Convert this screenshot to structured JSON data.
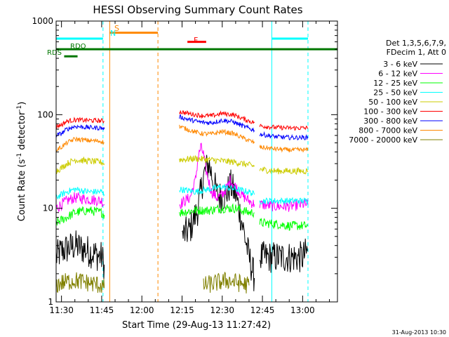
{
  "chart_data": {
    "type": "line",
    "title": "HESSI Observing Summary Count Rates",
    "xlabel": "Start Time (29-Aug-13 11:27:42)",
    "ylabel_main": "Count Rate (s",
    "ylabel_sup1": "-1",
    "ylabel_mid": " detector",
    "ylabel_sup2": "-1",
    "ylabel_end": ")",
    "y_scale": "log",
    "ylim": [
      1,
      1000
    ],
    "xlim_minutes": [
      688,
      793
    ],
    "x_ticks": [
      {
        "m": 690,
        "label": "11:30"
      },
      {
        "m": 705,
        "label": "11:45"
      },
      {
        "m": 720,
        "label": "12:00"
      },
      {
        "m": 735,
        "label": "12:15"
      },
      {
        "m": 750,
        "label": "12:30"
      },
      {
        "m": 765,
        "label": "12:45"
      },
      {
        "m": 780,
        "label": "13:00"
      }
    ],
    "y_ticks": [
      {
        "v": 1,
        "label": "1"
      },
      {
        "v": 10,
        "label": "10"
      },
      {
        "v": 100,
        "label": "100"
      },
      {
        "v": 1000,
        "label": "1000"
      }
    ],
    "legend": {
      "header": [
        "Det 1,3,5,6,7,9,",
        "FDecim 1, Att 0"
      ],
      "placement": "right"
    },
    "series": [
      {
        "name": "3 - 6 keV",
        "color": "#000000",
        "segments": [
          {
            "x": [
              688,
              690,
              695,
              700,
              705,
              706
            ],
            "y": [
              3.0,
              3.5,
              4.0,
              3.5,
              3.0,
              2.5
            ]
          },
          {
            "x": [
              735,
              738,
              741,
              743,
              745,
              748,
              750,
              752,
              753,
              755,
              757,
              760,
              762
            ],
            "y": [
              5.0,
              6.0,
              10.0,
              22.0,
              30.0,
              14.0,
              13.0,
              15.0,
              18.0,
              14.0,
              8.0,
              3.0,
              1.8
            ]
          },
          {
            "x": [
              764,
              770,
              775,
              780,
              782
            ],
            "y": [
              3.0,
              3.0,
              3.0,
              3.0,
              3.5
            ]
          }
        ]
      },
      {
        "name": "6 - 12 keV",
        "color": "#ff00ff",
        "segments": [
          {
            "x": [
              688,
              690,
              692,
              695,
              700,
              705,
              706
            ],
            "y": [
              10.0,
              11.0,
              12.0,
              13.0,
              12.5,
              12.0,
              11.0
            ]
          },
          {
            "x": [
              734,
              738,
              740,
              741,
              742,
              743,
              744,
              746,
              748,
              750,
              752,
              753,
              755,
              757,
              760,
              762
            ],
            "y": [
              11.0,
              13.0,
              20.0,
              35.0,
              45.0,
              38.0,
              25.0,
              15.0,
              13.0,
              14.0,
              17.0,
              20.0,
              17.0,
              14.0,
              12.0,
              11.0
            ]
          },
          {
            "x": [
              764,
              770,
              775,
              780,
              782
            ],
            "y": [
              11.0,
              10.5,
              10.5,
              11.0,
              11.0
            ]
          }
        ]
      },
      {
        "name": "12 - 25 keV",
        "color": "#00ff00",
        "segments": [
          {
            "x": [
              688,
              690,
              692,
              695,
              700,
              705,
              706
            ],
            "y": [
              7.0,
              7.5,
              8.0,
              9.0,
              9.5,
              9.0,
              8.5
            ]
          },
          {
            "x": [
              734,
              740,
              745,
              750,
              755,
              760,
              762
            ],
            "y": [
              9.0,
              9.5,
              9.5,
              10.0,
              10.0,
              9.0,
              9.0
            ]
          },
          {
            "x": [
              764,
              770,
              775,
              780,
              782
            ],
            "y": [
              7.0,
              6.8,
              6.5,
              6.5,
              6.5
            ]
          }
        ]
      },
      {
        "name": "25 - 50 keV",
        "color": "#00ffff",
        "segments": [
          {
            "x": [
              688,
              690,
              692,
              695,
              700,
              705,
              706
            ],
            "y": [
              13.0,
              14.0,
              15.0,
              16.0,
              15.0,
              15.0,
              14.0
            ]
          },
          {
            "x": [
              734,
              740,
              745,
              750,
              755,
              760,
              762
            ],
            "y": [
              16.0,
              15.0,
              16.0,
              17.0,
              16.0,
              15.0,
              14.0
            ]
          },
          {
            "x": [
              764,
              770,
              775,
              780,
              782
            ],
            "y": [
              12.0,
              12.0,
              12.0,
              12.0,
              12.0
            ]
          }
        ]
      },
      {
        "name": "50 - 100 keV",
        "color": "#cccc00",
        "segments": [
          {
            "x": [
              688,
              690,
              692,
              695,
              700,
              705,
              706
            ],
            "y": [
              25.0,
              27.0,
              30.0,
              33.0,
              32.0,
              31.0,
              30.0
            ]
          },
          {
            "x": [
              734,
              740,
              745,
              750,
              755,
              760,
              762
            ],
            "y": [
              33.0,
              34.0,
              33.0,
              32.0,
              31.0,
              29.0,
              28.0
            ]
          },
          {
            "x": [
              764,
              770,
              775,
              780,
              782
            ],
            "y": [
              26.0,
              25.0,
              25.0,
              25.0,
              25.0
            ]
          }
        ]
      },
      {
        "name": "100 - 300 keV",
        "color": "#ff0000",
        "segments": [
          {
            "x": [
              688,
              690,
              692,
              695,
              700,
              705,
              706
            ],
            "y": [
              75.0,
              78.0,
              85.0,
              88.0,
              87.0,
              86.0,
              85.0
            ]
          },
          {
            "x": [
              734,
              738,
              742,
              746,
              750,
              754,
              758,
              762
            ],
            "y": [
              108.0,
              102.0,
              98.0,
              97.0,
              103.0,
              100.0,
              90.0,
              82.0
            ]
          },
          {
            "x": [
              764,
              770,
              775,
              780,
              782
            ],
            "y": [
              76.0,
              73.0,
              72.0,
              72.0,
              72.0
            ]
          }
        ]
      },
      {
        "name": "300 - 800 keV",
        "color": "#0000ff",
        "segments": [
          {
            "x": [
              688,
              690,
              692,
              695,
              700,
              705,
              706
            ],
            "y": [
              60.0,
              63.0,
              70.0,
              75.0,
              73.0,
              72.0,
              70.0
            ]
          },
          {
            "x": [
              734,
              738,
              742,
              746,
              750,
              754,
              758,
              762
            ],
            "y": [
              95.0,
              88.0,
              83.0,
              82.0,
              87.0,
              84.0,
              75.0,
              68.0
            ]
          },
          {
            "x": [
              764,
              770,
              775,
              780,
              782
            ],
            "y": [
              62.0,
              58.0,
              57.0,
              57.0,
              57.0
            ]
          }
        ]
      },
      {
        "name": "800 - 7000 keV",
        "color": "#ff8800",
        "segments": [
          {
            "x": [
              688,
              690,
              692,
              695,
              700,
              705,
              706
            ],
            "y": [
              42.0,
              45.0,
              50.0,
              55.0,
              53.0,
              52.0,
              50.0
            ]
          },
          {
            "x": [
              734,
              738,
              742,
              746,
              750,
              754,
              758,
              762
            ],
            "y": [
              75.0,
              68.0,
              63.0,
              62.0,
              66.0,
              63.0,
              56.0,
              50.0
            ]
          },
          {
            "x": [
              764,
              770,
              775,
              780,
              782
            ],
            "y": [
              45.0,
              43.0,
              42.0,
              42.0,
              42.0
            ]
          }
        ]
      },
      {
        "name": "7000 - 20000 keV",
        "color": "#808000",
        "segments": [
          {
            "x": [
              688,
              690,
              695,
              700,
              705,
              706
            ],
            "y": [
              1.5,
              1.6,
              1.7,
              1.6,
              1.5,
              1.4
            ]
          },
          {
            "x": [
              743,
              748,
              752,
              756,
              760
            ],
            "y": [
              1.5,
              1.6,
              1.7,
              1.6,
              1.5
            ]
          }
        ]
      }
    ],
    "annotations": {
      "saa_label": "S",
      "night_label": "N",
      "flare_label": "F",
      "rd_upper": "RDO",
      "rd_lower": "RDS",
      "saa_bar": {
        "x": [
          708,
          726
        ],
        "y": 750,
        "color": "#ff8800"
      },
      "flare_bar": {
        "x": [
          737,
          744
        ],
        "y": 600,
        "color": "#ff0000"
      },
      "rd_upper_bar": {
        "x": [
          688,
          793
        ],
        "y": 500,
        "color": "#007700"
      },
      "rd_lower_bar": {
        "x": [
          691,
          696
        ],
        "y": 420,
        "color": "#007700"
      },
      "night_left_bar": {
        "x": [
          688,
          705.5
        ],
        "y": 650,
        "color": "#00ffff"
      },
      "night_right_bar": {
        "x": [
          768.5,
          782
        ],
        "y": 650,
        "color": "#00ffff"
      },
      "vlines": [
        {
          "x": 688.0,
          "color": "#00ffff",
          "dashed": false
        },
        {
          "x": 705.5,
          "color": "#00ffff",
          "dashed": true
        },
        {
          "x": 708.0,
          "color": "#ff8800",
          "dashed": false
        },
        {
          "x": 726.0,
          "color": "#ff8800",
          "dashed": true
        },
        {
          "x": 768.5,
          "color": "#00ffff",
          "dashed": false
        },
        {
          "x": 782.0,
          "color": "#00ffff",
          "dashed": true
        }
      ]
    },
    "footer_timestamp": "31-Aug-2013 10:30"
  }
}
